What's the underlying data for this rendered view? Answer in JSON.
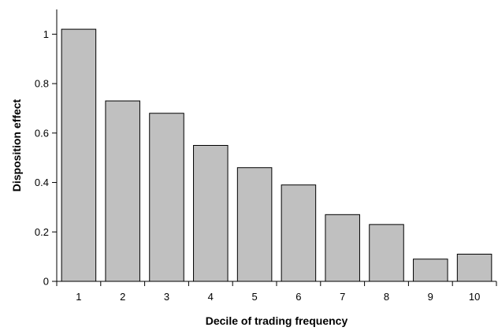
{
  "chart_data": {
    "type": "bar",
    "title": "",
    "xlabel": "Decile of trading frequency",
    "ylabel": "Disposition effect",
    "categories": [
      "1",
      "2",
      "3",
      "4",
      "5",
      "6",
      "7",
      "8",
      "9",
      "10"
    ],
    "values": [
      1.02,
      0.73,
      0.68,
      0.55,
      0.46,
      0.39,
      0.27,
      0.23,
      0.09,
      0.11
    ],
    "ylim": [
      0,
      1.1
    ],
    "yticks": [
      0,
      0.2,
      0.4,
      0.6,
      0.8,
      1
    ],
    "ytick_labels": [
      "0",
      "0.2",
      "0.4",
      "0.6",
      "0.8",
      "1"
    ],
    "grid": false,
    "legend": "none",
    "bar_color": "#c0c0c0",
    "bar_edge_color": "#000000"
  }
}
